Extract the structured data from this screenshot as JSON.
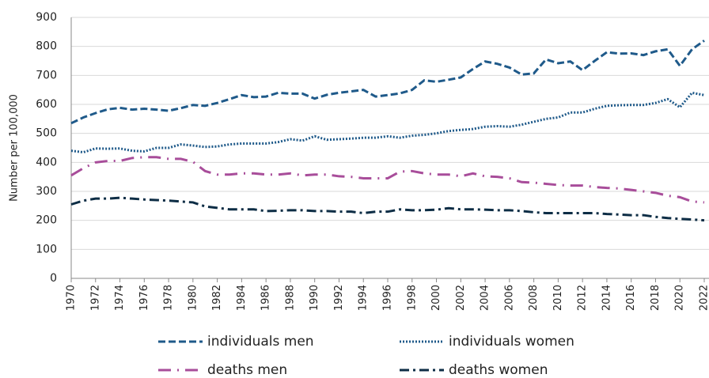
{
  "chart_data": {
    "type": "line",
    "y_label": "Number per 100,000",
    "x": [
      1970,
      1971,
      1972,
      1973,
      1974,
      1975,
      1976,
      1977,
      1978,
      1979,
      1980,
      1981,
      1982,
      1983,
      1984,
      1985,
      1986,
      1987,
      1988,
      1989,
      1990,
      1991,
      1992,
      1993,
      1994,
      1995,
      1996,
      1997,
      1998,
      1999,
      2000,
      2001,
      2002,
      2003,
      2004,
      2005,
      2006,
      2007,
      2008,
      2009,
      2010,
      2011,
      2012,
      2013,
      2014,
      2015,
      2016,
      2017,
      2018,
      2019,
      2020,
      2021,
      2022
    ],
    "xlim": [
      1970,
      2022
    ],
    "xticks": [
      1970,
      1972,
      1974,
      1976,
      1978,
      1980,
      1982,
      1984,
      1986,
      1988,
      1990,
      1992,
      1994,
      1996,
      1998,
      2000,
      2002,
      2004,
      2006,
      2008,
      2010,
      2012,
      2014,
      2016,
      2018,
      2020,
      2022
    ],
    "ylim": [
      0,
      900
    ],
    "yticks": [
      0,
      100,
      200,
      300,
      400,
      500,
      600,
      700,
      800,
      900
    ],
    "grid": true,
    "series": [
      {
        "name": "individuals men",
        "color": "#1f5a8a",
        "line_style": "dashed",
        "values": [
          535,
          555,
          570,
          583,
          588,
          582,
          585,
          582,
          578,
          587,
          598,
          595,
          605,
          618,
          632,
          625,
          627,
          640,
          637,
          637,
          620,
          633,
          640,
          645,
          650,
          627,
          632,
          638,
          650,
          683,
          678,
          685,
          693,
          722,
          748,
          740,
          727,
          703,
          707,
          755,
          742,
          748,
          718,
          750,
          780,
          775,
          776,
          770,
          783,
          790,
          733,
          790,
          820
        ]
      },
      {
        "name": "individuals women",
        "color": "#1f5a8a",
        "line_style": "dotted",
        "values": [
          440,
          435,
          448,
          447,
          448,
          440,
          438,
          450,
          450,
          462,
          458,
          453,
          455,
          462,
          465,
          465,
          465,
          470,
          480,
          475,
          490,
          478,
          480,
          482,
          485,
          485,
          490,
          485,
          492,
          495,
          500,
          508,
          512,
          515,
          523,
          525,
          523,
          530,
          540,
          550,
          555,
          572,
          572,
          585,
          595,
          597,
          598,
          598,
          605,
          618,
          590,
          640,
          632
        ]
      },
      {
        "name": "deaths men",
        "color": "#a84d9a",
        "line_style": "long-dash-dot",
        "values": [
          355,
          380,
          400,
          405,
          405,
          415,
          418,
          418,
          412,
          412,
          402,
          370,
          358,
          358,
          362,
          362,
          358,
          358,
          362,
          355,
          358,
          358,
          352,
          350,
          345,
          345,
          345,
          368,
          370,
          362,
          358,
          358,
          352,
          362,
          352,
          350,
          345,
          332,
          330,
          326,
          322,
          320,
          320,
          315,
          312,
          310,
          305,
          300,
          295,
          285,
          280,
          265,
          262
        ]
      },
      {
        "name": "deaths women",
        "color": "#0d2d45",
        "line_style": "dash-dot",
        "values": [
          255,
          268,
          275,
          275,
          278,
          275,
          272,
          270,
          268,
          265,
          262,
          248,
          243,
          238,
          238,
          238,
          232,
          233,
          235,
          235,
          232,
          232,
          230,
          230,
          225,
          230,
          230,
          238,
          235,
          235,
          237,
          242,
          238,
          238,
          237,
          235,
          235,
          232,
          228,
          225,
          225,
          225,
          225,
          225,
          222,
          220,
          218,
          218,
          212,
          208,
          205,
          203,
          200
        ]
      }
    ]
  }
}
